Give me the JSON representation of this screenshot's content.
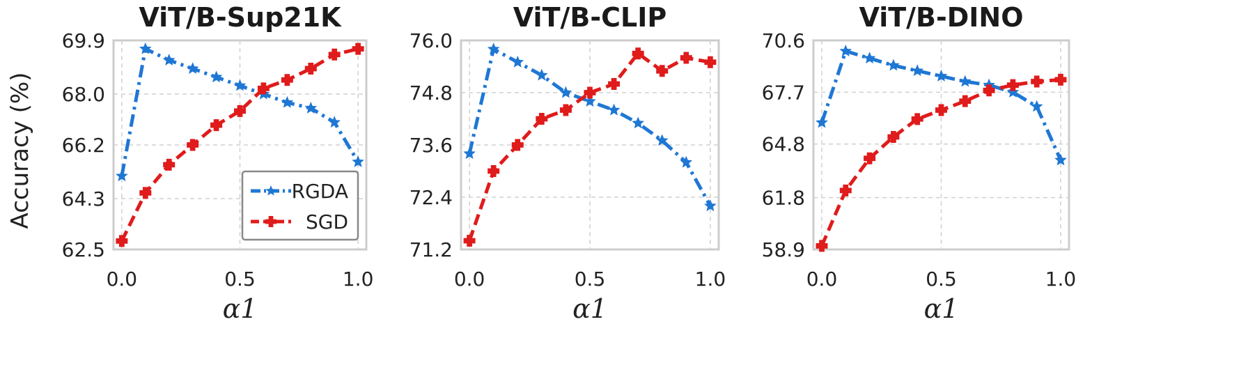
{
  "colors": {
    "series_0": "#1f77d4",
    "series_1": "#e01b1b",
    "grid": "#d0d0d0",
    "frame": "#cccccc"
  },
  "chart_data": [
    {
      "type": "line",
      "title": "ViT/B-Sup21K",
      "xlabel": "α1",
      "ylabel": "Accuracy (%)",
      "xlim": [
        0.0,
        1.0
      ],
      "ylim": [
        62.5,
        69.9
      ],
      "xticks": [
        "0.0",
        "0.5",
        "1.0"
      ],
      "yticks": [
        "62.5",
        "64.3",
        "66.2",
        "68.0",
        "69.9"
      ],
      "grid": true,
      "legend": "lower-right",
      "x": [
        0.0,
        0.1,
        0.2,
        0.3,
        0.4,
        0.5,
        0.6,
        0.7,
        0.8,
        0.9,
        1.0
      ],
      "series": [
        {
          "name": "RGDA",
          "style": "dashdot",
          "values": [
            65.1,
            69.6,
            69.2,
            68.9,
            68.6,
            68.3,
            68.0,
            67.7,
            67.5,
            67.0,
            65.6
          ]
        },
        {
          "name": "SGD",
          "style": "dashed",
          "values": [
            62.8,
            64.5,
            65.5,
            66.2,
            66.9,
            67.4,
            68.2,
            68.5,
            68.9,
            69.4,
            69.6
          ]
        }
      ]
    },
    {
      "type": "line",
      "title": "ViT/B-CLIP",
      "xlabel": "α1",
      "ylabel": "",
      "xlim": [
        0.0,
        1.0
      ],
      "ylim": [
        71.2,
        76.0
      ],
      "xticks": [
        "0.0",
        "0.5",
        "1.0"
      ],
      "yticks": [
        "71.2",
        "72.4",
        "73.6",
        "74.8",
        "76.0"
      ],
      "grid": true,
      "x": [
        0.0,
        0.1,
        0.2,
        0.3,
        0.4,
        0.5,
        0.6,
        0.7,
        0.8,
        0.9,
        1.0
      ],
      "series": [
        {
          "name": "RGDA",
          "style": "dashdot",
          "values": [
            73.4,
            75.8,
            75.5,
            75.2,
            74.8,
            74.6,
            74.4,
            74.1,
            73.7,
            73.2,
            72.2
          ]
        },
        {
          "name": "SGD",
          "style": "dashed",
          "values": [
            71.4,
            73.0,
            73.6,
            74.2,
            74.4,
            74.8,
            75.0,
            75.7,
            75.3,
            75.6,
            75.5
          ]
        }
      ]
    },
    {
      "type": "line",
      "title": "ViT/B-DINO",
      "xlabel": "α1",
      "ylabel": "",
      "xlim": [
        0.0,
        1.0
      ],
      "ylim": [
        58.9,
        70.6
      ],
      "xticks": [
        "0.0",
        "0.5",
        "1.0"
      ],
      "yticks": [
        "58.9",
        "61.8",
        "64.8",
        "67.7",
        "70.6"
      ],
      "grid": true,
      "x": [
        0.0,
        0.1,
        0.2,
        0.3,
        0.4,
        0.5,
        0.6,
        0.7,
        0.8,
        0.9,
        1.0
      ],
      "series": [
        {
          "name": "RGDA",
          "style": "dashdot",
          "values": [
            66.0,
            70.0,
            69.6,
            69.2,
            68.9,
            68.6,
            68.3,
            68.1,
            67.7,
            66.9,
            63.9
          ]
        },
        {
          "name": "SGD",
          "style": "dashed",
          "values": [
            59.1,
            62.2,
            64.0,
            65.2,
            66.2,
            66.7,
            67.2,
            67.8,
            68.1,
            68.3,
            68.4
          ]
        }
      ]
    }
  ]
}
